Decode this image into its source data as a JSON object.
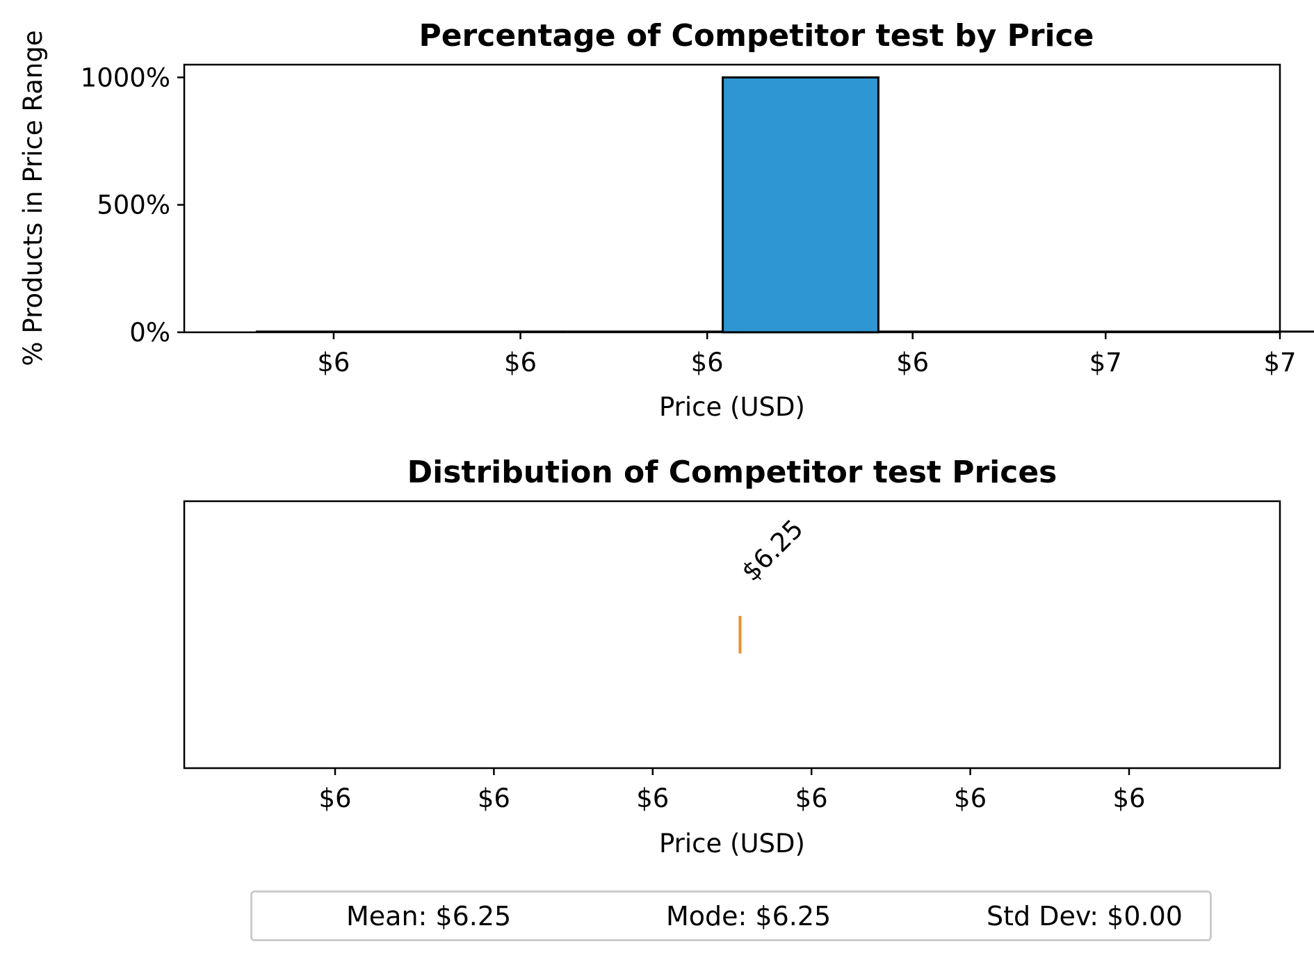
{
  "chart_data": [
    {
      "type": "bar",
      "title": "Percentage of Competitor test by Price",
      "xlabel": "Price (USD)",
      "ylabel": "% Products in Price Range",
      "bins": [
        {
          "x0": 5.375,
          "x1": 5.625,
          "value": 0
        },
        {
          "x0": 5.625,
          "x1": 5.875,
          "value": 0
        },
        {
          "x0": 5.875,
          "x1": 6.125,
          "value": 0
        },
        {
          "x0": 6.125,
          "x1": 6.375,
          "value": 1000
        },
        {
          "x0": 6.375,
          "x1": 6.625,
          "value": 0
        },
        {
          "x0": 6.625,
          "x1": 6.875,
          "value": 0
        },
        {
          "x0": 6.875,
          "x1": 7.125,
          "value": 0
        }
      ],
      "bar_color": "#2e96d2",
      "xlim": [
        5.26,
        7.02
      ],
      "ylim": [
        0,
        1050
      ],
      "xticks": [
        5.5,
        5.75,
        6.0,
        6.25,
        6.5,
        7.0
      ],
      "xtick_positions": [
        5.5,
        5.8,
        6.1,
        6.43,
        6.74,
        7.02
      ],
      "xtick_labels": [
        "$6",
        "$6",
        "$6",
        "$6",
        "$7",
        "$7"
      ],
      "yticks": [
        0,
        500,
        1000
      ],
      "ytick_labels": [
        "0%",
        "500%",
        "1000%"
      ]
    },
    {
      "type": "scatter",
      "title": "Distribution of Competitor test Prices",
      "xlabel": "Price (USD)",
      "points": [
        {
          "x": 6.25,
          "label": "$6.25"
        }
      ],
      "marker_color": "#f28e2b",
      "xlim": [
        5.9,
        6.59
      ],
      "xtick_positions": [
        5.995,
        6.095,
        6.195,
        6.295,
        6.395,
        6.495
      ],
      "xtick_labels": [
        "$6",
        "$6",
        "$6",
        "$6",
        "$6",
        "$6"
      ]
    }
  ],
  "stats": {
    "mean": "Mean: $6.25",
    "mode": "Mode: $6.25",
    "std": "Std Dev: $0.00"
  }
}
